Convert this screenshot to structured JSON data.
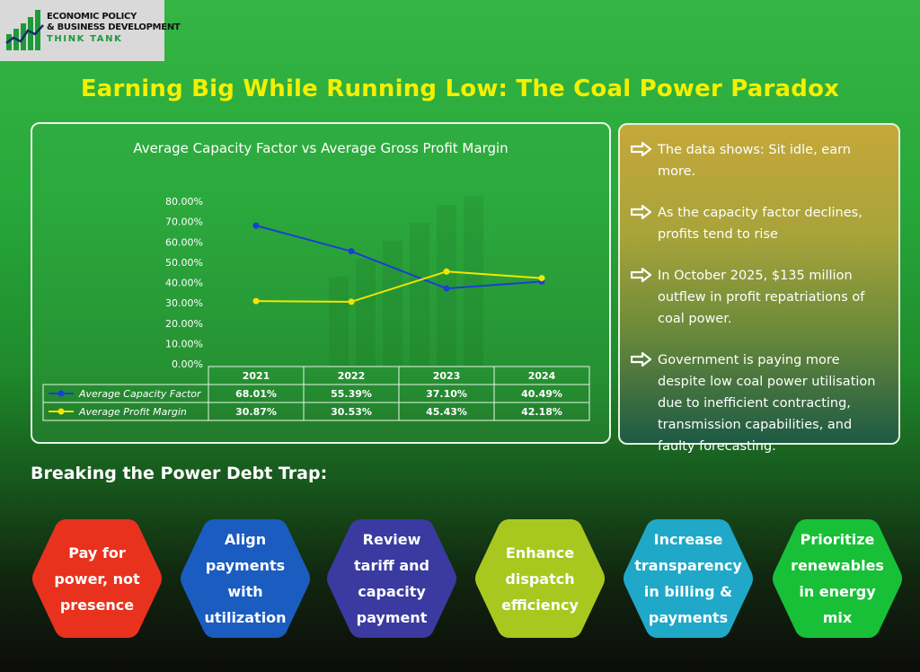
{
  "logo": {
    "line1": "ECONOMIC POLICY",
    "line2": "& BUSINESS DEVELOPMENT",
    "line3": "THINK TANK"
  },
  "title": "Earning Big While Running Low: The Coal Power Paradox",
  "chart_data": {
    "type": "line",
    "title": "Average Capacity Factor vs Average Gross Profit Margin",
    "categories": [
      "2021",
      "2022",
      "2023",
      "2024"
    ],
    "series": [
      {
        "name": "Average Capacity Factor",
        "values": [
          68.01,
          55.39,
          37.1,
          40.49
        ],
        "labels": [
          "68.01%",
          "55.39%",
          "37.10%",
          "40.49%"
        ],
        "color": "#1a3fd6"
      },
      {
        "name": "Average Profit Margin",
        "values": [
          30.87,
          30.53,
          45.43,
          42.18
        ],
        "labels": [
          "30.87%",
          "30.53%",
          "45.43%",
          "42.18%"
        ],
        "color": "#f2e600"
      }
    ],
    "ylim": [
      0,
      80
    ],
    "yticks": [
      "0.00%",
      "10.00%",
      "20.00%",
      "30.00%",
      "40.00%",
      "50.00%",
      "60.00%",
      "70.00%",
      "80.00%"
    ],
    "legend": "data-table below plot",
    "grid": false
  },
  "insights": [
    "The data shows: Sit idle, earn more.",
    "As the capacity factor declines, profits tend to rise",
    "In October 2025, $135 million outflew in profit repatriations of coal power.",
    "Government is paying more despite low coal power utilisation due to inefficient contracting, transmission capabilities, and faulty forecasting."
  ],
  "section_title": "Breaking the Power Debt Trap:",
  "actions": [
    {
      "label": "Pay for power, not presence",
      "color": "#e8321e"
    },
    {
      "label": "Align payments with utilization",
      "color": "#1a5cc0"
    },
    {
      "label": "Review tariff and capacity payment",
      "color": "#3a3aa0"
    },
    {
      "label": "Enhance dispatch efficiency",
      "color": "#a8c820"
    },
    {
      "label": "Increase transparency in billing & payments",
      "color": "#20a8c8"
    },
    {
      "label": "Prioritize renewables in energy mix",
      "color": "#18c038"
    }
  ],
  "icons": {
    "bullet": "arrow-right-icon",
    "logo": "growth-bars-icon"
  }
}
